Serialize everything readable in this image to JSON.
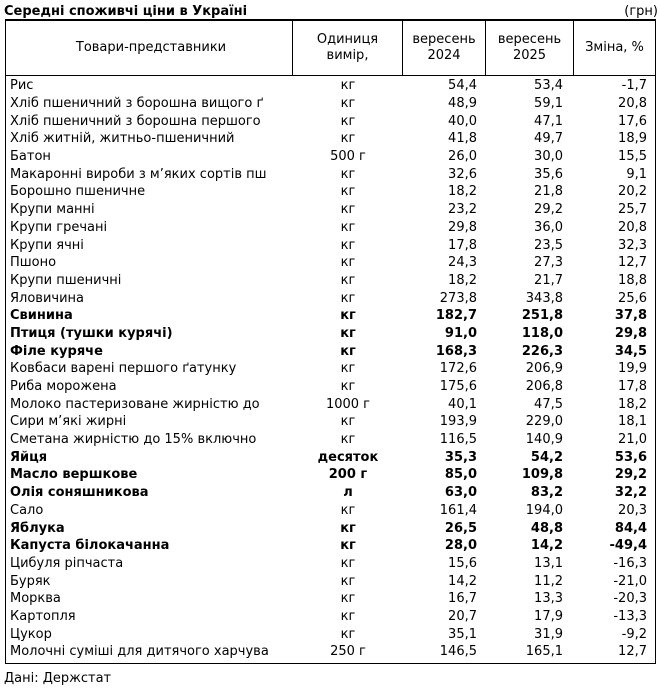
{
  "title": "Середні споживчі ціни в Україні",
  "currency_note": "(грн)",
  "footer": "Дані: Держстат",
  "table": {
    "headers": [
      "Товари-представники",
      "Одиниця\nвимір,",
      "вересень\n2024",
      "вересень\n2025",
      "Зміна, %"
    ]
  },
  "chart_data": {
    "type": "table",
    "title": "Середні споживчі ціни в Україні",
    "unit": "грн",
    "source": "Дані: Держстат",
    "columns": [
      "Товари-представники",
      "Одиниця вимір,",
      "вересень 2024",
      "вересень 2025",
      "Зміна, %"
    ],
    "rows": [
      {
        "name": "Рис",
        "unit": "кг",
        "sep2024": "54,4",
        "sep2025": "53,4",
        "change": "-1,7",
        "bold": false
      },
      {
        "name": "Хліб пшеничний з борошна вищого ґ",
        "unit": "кг",
        "sep2024": "48,9",
        "sep2025": "59,1",
        "change": "20,8",
        "bold": false
      },
      {
        "name": "Хліб пшеничний з борошна першого",
        "unit": "кг",
        "sep2024": "40,0",
        "sep2025": "47,1",
        "change": "17,6",
        "bold": false
      },
      {
        "name": "Хліб житній, житньо-пшеничний",
        "unit": "кг",
        "sep2024": "41,8",
        "sep2025": "49,7",
        "change": "18,9",
        "bold": false
      },
      {
        "name": "Батон",
        "unit": "500 г",
        "sep2024": "26,0",
        "sep2025": "30,0",
        "change": "15,5",
        "bold": false
      },
      {
        "name": "Макаронні вироби з м’яких сортів пш",
        "unit": "кг",
        "sep2024": "32,6",
        "sep2025": "35,6",
        "change": "9,1",
        "bold": false
      },
      {
        "name": "Борошно пшеничне",
        "unit": "кг",
        "sep2024": "18,2",
        "sep2025": "21,8",
        "change": "20,2",
        "bold": false
      },
      {
        "name": "Крупи манні",
        "unit": "кг",
        "sep2024": "23,2",
        "sep2025": "29,2",
        "change": "25,7",
        "bold": false
      },
      {
        "name": "Крупи гречані",
        "unit": "кг",
        "sep2024": "29,8",
        "sep2025": "36,0",
        "change": "20,8",
        "bold": false
      },
      {
        "name": "Крупи ячні",
        "unit": "кг",
        "sep2024": "17,8",
        "sep2025": "23,5",
        "change": "32,3",
        "bold": false
      },
      {
        "name": "Пшоно",
        "unit": "кг",
        "sep2024": "24,3",
        "sep2025": "27,3",
        "change": "12,7",
        "bold": false
      },
      {
        "name": "Крупи пшеничні",
        "unit": "кг",
        "sep2024": "18,2",
        "sep2025": "21,7",
        "change": "18,8",
        "bold": false
      },
      {
        "name": "Яловичина",
        "unit": "кг",
        "sep2024": "273,8",
        "sep2025": "343,8",
        "change": "25,6",
        "bold": false
      },
      {
        "name": "Свинина",
        "unit": "кг",
        "sep2024": "182,7",
        "sep2025": "251,8",
        "change": "37,8",
        "bold": true
      },
      {
        "name": "Птиця (тушки курячі)",
        "unit": "кг",
        "sep2024": "91,0",
        "sep2025": "118,0",
        "change": "29,8",
        "bold": true
      },
      {
        "name": "Філе куряче",
        "unit": "кг",
        "sep2024": "168,3",
        "sep2025": "226,3",
        "change": "34,5",
        "bold": true
      },
      {
        "name": "Ковбаси варені першого ґатунку",
        "unit": "кг",
        "sep2024": "172,6",
        "sep2025": "206,9",
        "change": "19,9",
        "bold": false
      },
      {
        "name": "Риба морожена",
        "unit": "кг",
        "sep2024": "175,6",
        "sep2025": "206,8",
        "change": "17,8",
        "bold": false
      },
      {
        "name": "Молоко пастеризоване жирністю до",
        "unit": "1000 г",
        "sep2024": "40,1",
        "sep2025": "47,5",
        "change": "18,2",
        "bold": false
      },
      {
        "name": "Сири м’які жирні",
        "unit": "кг",
        "sep2024": "193,9",
        "sep2025": "229,0",
        "change": "18,1",
        "bold": false
      },
      {
        "name": "Сметана жирністю до 15% включно",
        "unit": "кг",
        "sep2024": "116,5",
        "sep2025": "140,9",
        "change": "21,0",
        "bold": false
      },
      {
        "name": "Яйця",
        "unit": "десяток",
        "sep2024": "35,3",
        "sep2025": "54,2",
        "change": "53,6",
        "bold": true
      },
      {
        "name": "Масло вершкове",
        "unit": "200 г",
        "sep2024": "85,0",
        "sep2025": "109,8",
        "change": "29,2",
        "bold": true
      },
      {
        "name": "Олія соняшникова",
        "unit": "л",
        "sep2024": "63,0",
        "sep2025": "83,2",
        "change": "32,2",
        "bold": true
      },
      {
        "name": "Сало",
        "unit": "кг",
        "sep2024": "161,4",
        "sep2025": "194,0",
        "change": "20,3",
        "bold": false
      },
      {
        "name": "Яблука",
        "unit": "кг",
        "sep2024": "26,5",
        "sep2025": "48,8",
        "change": "84,4",
        "bold": true
      },
      {
        "name": "Капуста білокачанна",
        "unit": "кг",
        "sep2024": "28,0",
        "sep2025": "14,2",
        "change": "-49,4",
        "bold": true
      },
      {
        "name": "Цибуля ріпчаста",
        "unit": "кг",
        "sep2024": "15,6",
        "sep2025": "13,1",
        "change": "-16,3",
        "bold": false
      },
      {
        "name": "Буряк",
        "unit": "кг",
        "sep2024": "14,2",
        "sep2025": "11,2",
        "change": "-21,0",
        "bold": false
      },
      {
        "name": "Морква",
        "unit": "кг",
        "sep2024": "16,7",
        "sep2025": "13,3",
        "change": "-20,3",
        "bold": false
      },
      {
        "name": "Картопля",
        "unit": "кг",
        "sep2024": "20,7",
        "sep2025": "17,9",
        "change": "-13,3",
        "bold": false
      },
      {
        "name": "Цукор",
        "unit": "кг",
        "sep2024": "35,1",
        "sep2025": "31,9",
        "change": "-9,2",
        "bold": false
      },
      {
        "name": "Молочні суміші для дитячого харчува",
        "unit": "250 г",
        "sep2024": "146,5",
        "sep2025": "165,1",
        "change": "12,7",
        "bold": false
      }
    ]
  }
}
